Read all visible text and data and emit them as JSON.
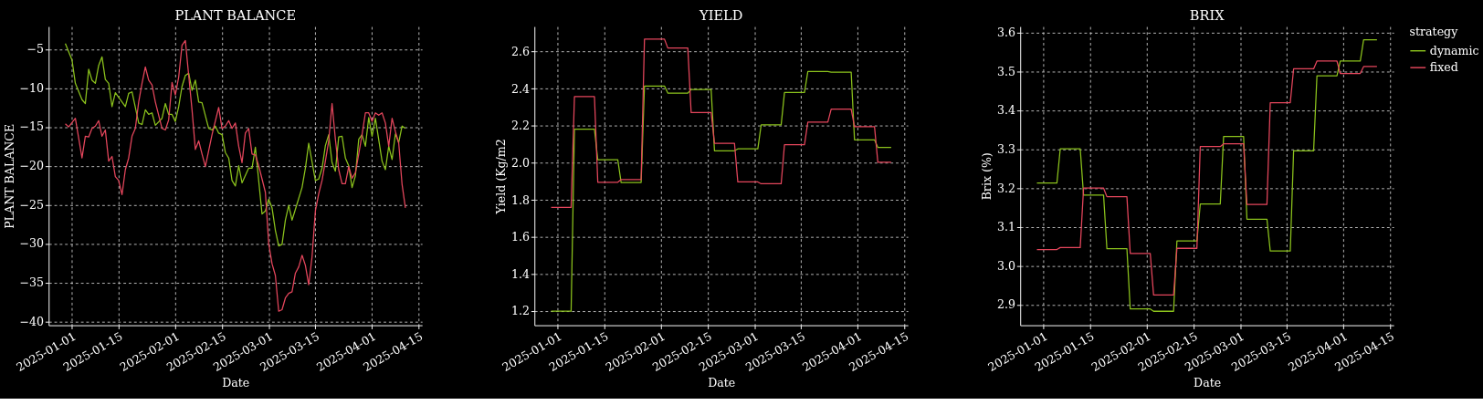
{
  "chart_data": [
    {
      "type": "line",
      "title": "PLANT BALANCE",
      "xlabel": "Date",
      "ylabel": "PLANT BALANCE",
      "grid": true,
      "xlim": [
        "2024-12-25",
        "2025-04-16"
      ],
      "xticks": [
        "2025-01-01",
        "2025-01-15",
        "2025-02-01",
        "2025-02-15",
        "2025-03-01",
        "2025-03-15",
        "2025-04-01",
        "2025-04-15"
      ],
      "ylim": [
        -40.5,
        -2.1
      ],
      "yticks": [
        {
          "value": -5,
          "label": "−5"
        },
        {
          "value": -10,
          "label": "−10"
        },
        {
          "value": -15,
          "label": "−15"
        },
        {
          "value": -20,
          "label": "−20"
        },
        {
          "value": -25,
          "label": "−25"
        },
        {
          "value": -30,
          "label": "−30"
        },
        {
          "value": -35,
          "label": "−35"
        },
        {
          "value": -40,
          "label": "−40"
        }
      ],
      "series": [
        {
          "color": "#8bc21c",
          "x": [
            "2024-12-30",
            "2025-01-01",
            "2025-01-02",
            "2025-01-04",
            "2025-01-05",
            "2025-01-06",
            "2025-01-07",
            "2025-01-08",
            "2025-01-09",
            "2025-01-10",
            "2025-01-11",
            "2025-01-12",
            "2025-01-13",
            "2025-01-14",
            "2025-01-17",
            "2025-01-18",
            "2025-01-19",
            "2025-01-21",
            "2025-01-22",
            "2025-01-23",
            "2025-01-24",
            "2025-01-25",
            "2025-01-26",
            "2025-01-28",
            "2025-01-29",
            "2025-01-30",
            "2025-01-31",
            "2025-02-01",
            "2025-02-02",
            "2025-02-03",
            "2025-02-04",
            "2025-02-05",
            "2025-02-06",
            "2025-02-07",
            "2025-02-08",
            "2025-02-09",
            "2025-02-11",
            "2025-02-12",
            "2025-02-13",
            "2025-02-14",
            "2025-02-15",
            "2025-02-16",
            "2025-02-17",
            "2025-02-18",
            "2025-02-19",
            "2025-02-20",
            "2025-02-21",
            "2025-02-23",
            "2025-02-24",
            "2025-02-25",
            "2025-02-27",
            "2025-02-28",
            "2025-03-01",
            "2025-03-02",
            "2025-03-03",
            "2025-03-04",
            "2025-03-05",
            "2025-03-06",
            "2025-03-07",
            "2025-03-08",
            "2025-03-09",
            "2025-03-11",
            "2025-03-12",
            "2025-03-13",
            "2025-03-15",
            "2025-03-16",
            "2025-03-17",
            "2025-03-18",
            "2025-03-19",
            "2025-03-20",
            "2025-03-21",
            "2025-03-22",
            "2025-03-23",
            "2025-03-24",
            "2025-03-25",
            "2025-03-26",
            "2025-03-27",
            "2025-03-28",
            "2025-03-29",
            "2025-03-30",
            "2025-03-31",
            "2025-04-01",
            "2025-04-02",
            "2025-04-04",
            "2025-04-05",
            "2025-04-06",
            "2025-04-07",
            "2025-04-08",
            "2025-04-09",
            "2025-04-10",
            "2025-04-11"
          ],
          "values": [
            -4.3,
            -6.4,
            -9.4,
            -11.5,
            -12.0,
            -7.6,
            -9.0,
            -9.4,
            -7.1,
            -6.0,
            -8.9,
            -9.4,
            -12.4,
            -10.6,
            -12.4,
            -10.7,
            -10.5,
            -14.5,
            -14.7,
            -12.8,
            -13.4,
            -13.2,
            -14.8,
            -13.9,
            -12.0,
            -13.4,
            -13.4,
            -14.3,
            -12.4,
            -9.8,
            -8.4,
            -8.1,
            -10.3,
            -9.0,
            -11.8,
            -11.9,
            -15.2,
            -15.4,
            -14.9,
            -15.8,
            -16.0,
            -18.3,
            -19.0,
            -21.9,
            -22.6,
            -20.0,
            -22.2,
            -20.3,
            -20.3,
            -17.6,
            -26.2,
            -25.8,
            -24.3,
            -25.4,
            -28.3,
            -30.3,
            -30.1,
            -27.0,
            -25.1,
            -27.0,
            -25.6,
            -22.8,
            -20.3,
            -17.1,
            -21.9,
            -21.7,
            -20.3,
            -17.4,
            -16.0,
            -19.6,
            -20.7,
            -16.3,
            -16.2,
            -19.0,
            -20.0,
            -22.8,
            -21.3,
            -16.6,
            -16.0,
            -17.5,
            -13.8,
            -16.2,
            -13.9,
            -19.4,
            -20.5,
            -17.5,
            -19.2,
            -15.9,
            -17.0,
            -14.9,
            -15.2
          ]
        },
        {
          "color": "#e5465c",
          "x": [
            "2024-12-30",
            "2024-12-31",
            "2025-01-02",
            "2025-01-04",
            "2025-01-05",
            "2025-01-06",
            "2025-01-07",
            "2025-01-08",
            "2025-01-09",
            "2025-01-10",
            "2025-01-11",
            "2025-01-12",
            "2025-01-13",
            "2025-01-14",
            "2025-01-15",
            "2025-01-16",
            "2025-01-17",
            "2025-01-18",
            "2025-01-19",
            "2025-01-20",
            "2025-01-21",
            "2025-01-22",
            "2025-01-23",
            "2025-01-24",
            "2025-01-25",
            "2025-01-26",
            "2025-01-28",
            "2025-01-29",
            "2025-01-30",
            "2025-01-31",
            "2025-02-01",
            "2025-02-02",
            "2025-02-03",
            "2025-02-04",
            "2025-02-05",
            "2025-02-06",
            "2025-02-07",
            "2025-02-08",
            "2025-02-09",
            "2025-02-10",
            "2025-02-12",
            "2025-02-14",
            "2025-02-15",
            "2025-02-16",
            "2025-02-17",
            "2025-02-18",
            "2025-02-19",
            "2025-02-20",
            "2025-02-21",
            "2025-02-22",
            "2025-02-23",
            "2025-02-24",
            "2025-02-25",
            "2025-02-26",
            "2025-02-28",
            "2025-03-01",
            "2025-03-02",
            "2025-03-03",
            "2025-03-04",
            "2025-03-05",
            "2025-03-06",
            "2025-03-07",
            "2025-03-08",
            "2025-03-09",
            "2025-03-10",
            "2025-03-11",
            "2025-03-12",
            "2025-03-13",
            "2025-03-14",
            "2025-03-15",
            "2025-03-16",
            "2025-03-17",
            "2025-03-18",
            "2025-03-19",
            "2025-03-20",
            "2025-03-21",
            "2025-03-22",
            "2025-03-23",
            "2025-03-24",
            "2025-03-25",
            "2025-03-26",
            "2025-03-27",
            "2025-03-28",
            "2025-03-29",
            "2025-03-30",
            "2025-03-31",
            "2025-04-01",
            "2025-04-02",
            "2025-04-03",
            "2025-04-04",
            "2025-04-05",
            "2025-04-06",
            "2025-04-07",
            "2025-04-08",
            "2025-04-09",
            "2025-04-10",
            "2025-04-11"
          ],
          "values": [
            -14.6,
            -15.0,
            -13.9,
            -19.0,
            -16.2,
            -16.3,
            -15.2,
            -14.9,
            -14.2,
            -16.2,
            -15.4,
            -19.4,
            -18.8,
            -21.4,
            -21.9,
            -23.7,
            -20.5,
            -19.0,
            -16.2,
            -15.2,
            -11.8,
            -9.4,
            -7.3,
            -9.0,
            -9.6,
            -11.8,
            -15.2,
            -15.4,
            -14.1,
            -9.3,
            -10.9,
            -8.6,
            -4.5,
            -3.9,
            -8.4,
            -12.8,
            -17.9,
            -16.8,
            -18.5,
            -20.1,
            -16.0,
            -12.5,
            -15.2,
            -14.9,
            -14.2,
            -15.2,
            -14.5,
            -17.5,
            -19.6,
            -15.8,
            -15.2,
            -18.5,
            -18.6,
            -20.0,
            -23.4,
            -30.0,
            -32.6,
            -34.1,
            -38.7,
            -38.5,
            -37.0,
            -36.4,
            -36.2,
            -33.8,
            -33.0,
            -31.5,
            -32.8,
            -35.3,
            -31.7,
            -25.8,
            -23.6,
            -21.9,
            -19.4,
            -16.8,
            -12.0,
            -16.6,
            -20.5,
            -22.3,
            -22.3,
            -20.1,
            -21.6,
            -20.9,
            -18.5,
            -16.0,
            -13.2,
            -13.2,
            -14.3,
            -13.2,
            -13.5,
            -13.2,
            -14.5,
            -17.5,
            -13.9,
            -15.6,
            -17.1,
            -22.4,
            -25.4
          ]
        }
      ]
    },
    {
      "type": "line",
      "title": "YIELD",
      "xlabel": "Date",
      "ylabel": "Yield (Kg/m2",
      "grid": true,
      "xlim": [
        "2024-12-25",
        "2025-04-16"
      ],
      "xticks": [
        "2025-01-01",
        "2025-01-15",
        "2025-02-01",
        "2025-02-15",
        "2025-03-01",
        "2025-03-15",
        "2025-04-01",
        "2025-04-15"
      ],
      "ylim": [
        1.124,
        2.735
      ],
      "yticks": [
        1.2,
        1.4,
        1.6,
        1.8,
        {
          "value": 2,
          "label": "2.0"
        },
        2.2,
        2.4,
        2.6
      ],
      "x": [
        "2024-12-30",
        "2025-01-05",
        "2025-01-06",
        "2025-01-12",
        "2025-01-13",
        "2025-01-19",
        "2025-01-20",
        "2025-01-26",
        "2025-01-27",
        "2025-02-02",
        "2025-02-03",
        "2025-02-09",
        "2025-02-10",
        "2025-02-16",
        "2025-02-17",
        "2025-02-23",
        "2025-02-24",
        "2025-03-02",
        "2025-03-03",
        "2025-03-09",
        "2025-03-10",
        "2025-03-16",
        "2025-03-17",
        "2025-03-23",
        "2025-03-24",
        "2025-03-30",
        "2025-03-31",
        "2025-04-06",
        "2025-04-07",
        "2025-04-11"
      ],
      "series": [
        {
          "color": "#8bc21c",
          "values": [
            1.2,
            1.2,
            2.181,
            2.181,
            2.016,
            2.016,
            1.894,
            1.894,
            2.414,
            2.414,
            2.376,
            2.376,
            2.395,
            2.395,
            2.065,
            2.065,
            2.075,
            2.075,
            2.205,
            2.205,
            2.379,
            2.379,
            2.492,
            2.492,
            2.489,
            2.489,
            2.124,
            2.124,
            2.083,
            2.083
          ]
        },
        {
          "color": "#e5465c",
          "values": [
            1.759,
            1.759,
            2.357,
            2.357,
            1.895,
            1.895,
            1.91,
            1.91,
            2.667,
            2.667,
            2.619,
            2.619,
            2.271,
            2.271,
            2.105,
            2.105,
            1.897,
            1.897,
            1.887,
            1.887,
            2.098,
            2.098,
            2.219,
            2.219,
            2.29,
            2.29,
            2.195,
            2.195,
            2.003,
            2.003
          ]
        }
      ]
    },
    {
      "type": "line",
      "title": "BRIX",
      "xlabel": "Date",
      "ylabel": "Brix (%)",
      "grid": true,
      "legend": "right",
      "legend_title": "strategy",
      "xlim": [
        "2024-12-25",
        "2025-04-16"
      ],
      "xticks": [
        "2025-01-01",
        "2025-01-15",
        "2025-02-01",
        "2025-02-15",
        "2025-03-01",
        "2025-03-15",
        "2025-04-01",
        "2025-04-15"
      ],
      "ylim": [
        2.847,
        3.616
      ],
      "yticks": [
        2.9,
        {
          "value": 3,
          "label": "3.0"
        },
        3.1,
        3.2,
        3.3,
        3.4,
        3.5,
        3.6
      ],
      "x": [
        "2024-12-30",
        "2025-01-05",
        "2025-01-06",
        "2025-01-12",
        "2025-01-13",
        "2025-01-19",
        "2025-01-20",
        "2025-01-26",
        "2025-01-27",
        "2025-02-02",
        "2025-02-03",
        "2025-02-09",
        "2025-02-10",
        "2025-02-16",
        "2025-02-17",
        "2025-02-23",
        "2025-02-24",
        "2025-03-02",
        "2025-03-03",
        "2025-03-09",
        "2025-03-10",
        "2025-03-16",
        "2025-03-17",
        "2025-03-23",
        "2025-03-24",
        "2025-03-30",
        "2025-03-31",
        "2025-04-06",
        "2025-04-07",
        "2025-04-11"
      ],
      "series": [
        {
          "name": "dynamic",
          "color": "#8bc21c",
          "values": [
            3.213,
            3.213,
            3.301,
            3.301,
            3.182,
            3.182,
            3.044,
            3.044,
            2.889,
            2.889,
            2.883,
            2.883,
            3.064,
            3.064,
            3.159,
            3.159,
            3.333,
            3.333,
            3.12,
            3.12,
            3.038,
            3.038,
            3.296,
            3.296,
            3.489,
            3.489,
            3.527,
            3.527,
            3.582,
            3.582
          ]
        },
        {
          "name": "fixed",
          "color": "#e5465c",
          "values": [
            3.042,
            3.042,
            3.047,
            3.047,
            3.2,
            3.2,
            3.178,
            3.178,
            3.032,
            3.032,
            2.925,
            2.925,
            3.045,
            3.045,
            3.307,
            3.307,
            3.314,
            3.314,
            3.158,
            3.158,
            3.42,
            3.42,
            3.507,
            3.507,
            3.527,
            3.527,
            3.495,
            3.495,
            3.513,
            3.513
          ]
        }
      ]
    }
  ]
}
